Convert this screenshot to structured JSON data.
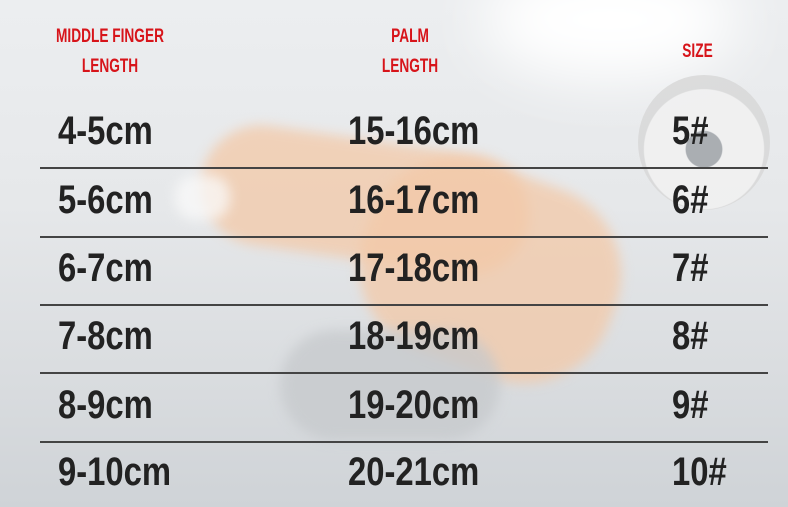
{
  "headers": {
    "middle_finger": "MIDDLE FINGER",
    "middle_finger_2": "LENGTH",
    "palm": "PALM",
    "palm_2": "LENGTH",
    "size": "SIZE"
  },
  "rows": [
    {
      "finger": "4-5cm",
      "palm": "15-16cm",
      "size": "5#"
    },
    {
      "finger": "5-6cm",
      "palm": "16-17cm",
      "size": "6#"
    },
    {
      "finger": "6-7cm",
      "palm": "17-18cm",
      "size": "7#"
    },
    {
      "finger": "7-8cm",
      "palm": "18-19cm",
      "size": "8#"
    },
    {
      "finger": "8-9cm",
      "palm": "19-20cm",
      "size": "9#"
    },
    {
      "finger": "9-10cm",
      "palm": "20-21cm",
      "size": "10#"
    }
  ],
  "colors": {
    "header": "#d7141a",
    "text": "#222222",
    "rule": "#444444"
  }
}
